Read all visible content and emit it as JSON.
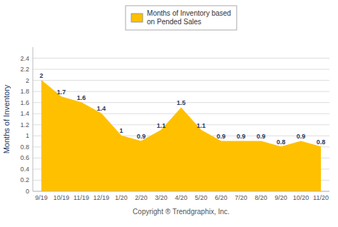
{
  "chart_data": {
    "type": "area",
    "ylabel": "Months of Inventory",
    "xlabel": "Copyright ® Trendgraphix, Inc.",
    "categories": [
      "9/19",
      "10/19",
      "11/19",
      "12/19",
      "1/20",
      "2/20",
      "3/20",
      "4/20",
      "5/20",
      "6/20",
      "7/20",
      "8/20",
      "9/20",
      "10/20",
      "11/20"
    ],
    "series": [
      {
        "name": "Months of Inventory based\non Pended Sales",
        "color": "#FFC000",
        "values": [
          2.0,
          1.7,
          1.6,
          1.4,
          1.0,
          0.9,
          1.1,
          1.5,
          1.1,
          0.9,
          0.9,
          0.9,
          0.8,
          0.9,
          0.8
        ]
      }
    ],
    "ylim": [
      0,
      2.6
    ],
    "yticks": [
      0,
      0.2,
      0.4,
      0.6,
      0.8,
      1,
      1.2,
      1.4,
      1.6,
      1.8,
      2,
      2.2,
      2.4
    ],
    "grid": true,
    "legend": "top",
    "data_labels": true
  }
}
